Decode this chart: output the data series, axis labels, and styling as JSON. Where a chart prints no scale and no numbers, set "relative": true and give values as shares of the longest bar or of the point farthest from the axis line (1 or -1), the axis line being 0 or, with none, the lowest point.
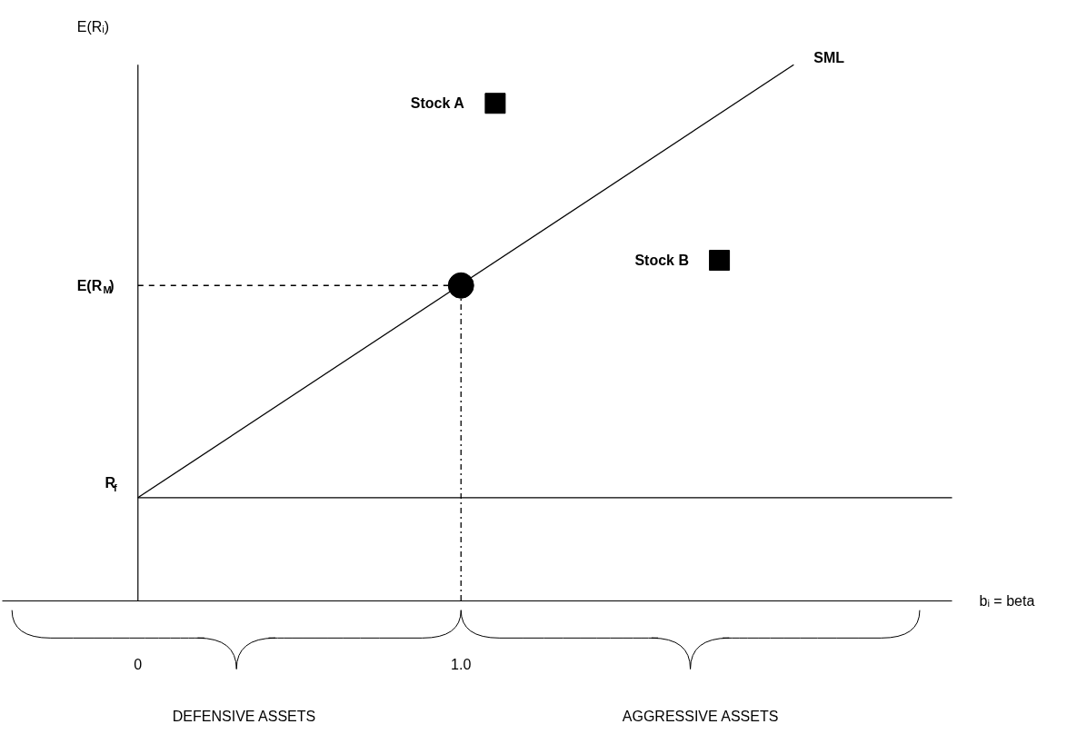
{
  "chart_data": {
    "type": "line",
    "xlabel": "bᵢ = beta",
    "ylabel": "E(Rᵢ)",
    "relative": true,
    "xlim": [
      -0.42,
      2.52
    ],
    "xticks": [
      {
        "value": 0,
        "label": "0"
      },
      {
        "value": 1,
        "label": "1.0"
      }
    ],
    "series": [
      {
        "name": "SML",
        "color": "#000000",
        "x": [
          0,
          2.03
        ],
        "values": [
          0.192,
          1
        ],
        "line_style": "solid"
      },
      {
        "name": "E(R$_{M}$)",
        "color": "#000000",
        "x": [
          0,
          1
        ],
        "values": [
          0.588,
          0.588
        ],
        "line_style": "dashed"
      },
      {
        "color": "#000000",
        "x": [
          1,
          1
        ],
        "values": [
          0,
          0.588
        ],
        "line_style": "dashdot"
      },
      {
        "type": "scatter",
        "marker": "circle",
        "color": "#000000",
        "x": [
          1
        ],
        "values": [
          0.588
        ]
      },
      {
        "type": "scatter",
        "marker": "square",
        "name": "Stock A",
        "color": "#000000",
        "x": [
          1.106
        ],
        "values": [
          0.928
        ]
      },
      {
        "type": "scatter",
        "marker": "square",
        "name": "Stock B",
        "color": "#000000",
        "x": [
          1.8
        ],
        "values": [
          0.635
        ]
      }
    ],
    "ref_lines": [
      {
        "axis": "y",
        "value": 0.192,
        "label": "R$_{f}$",
        "color": "#000000"
      }
    ],
    "annotations": [
      "DEFENSIVE ASSETS",
      "AGGRESSIVE ASSETS"
    ]
  }
}
